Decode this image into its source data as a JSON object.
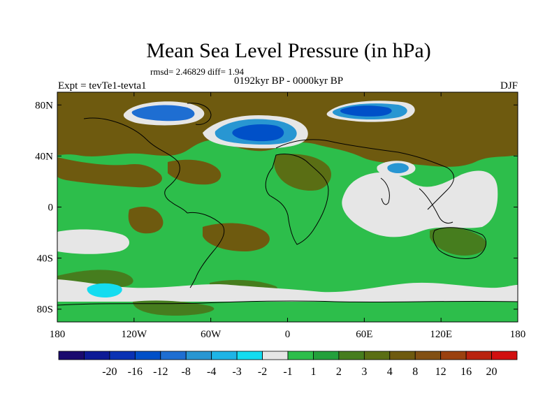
{
  "chart_data": {
    "type": "heatmap",
    "title": "Mean Sea Level Pressure (in hPa)",
    "stats_line": "rmsd= 2.46829 diff= 1.94",
    "subtitle": "0192kyr BP - 0000kyr BP",
    "left_label": "Expt = tevTe1-tevta1",
    "right_label": "DJF",
    "x_axis": {
      "range": [
        -180,
        180
      ],
      "ticks": [
        {
          "value": -180,
          "label": "180"
        },
        {
          "value": -120,
          "label": "120W"
        },
        {
          "value": -60,
          "label": "60W"
        },
        {
          "value": 0,
          "label": "0"
        },
        {
          "value": 60,
          "label": "60E"
        },
        {
          "value": 120,
          "label": "120E"
        },
        {
          "value": 180,
          "label": "180"
        }
      ]
    },
    "y_axis": {
      "range": [
        -90,
        90
      ],
      "ticks": [
        {
          "value": 80,
          "label": "80N"
        },
        {
          "value": 40,
          "label": "40N"
        },
        {
          "value": 0,
          "label": "0"
        },
        {
          "value": -40,
          "label": "40S"
        },
        {
          "value": -80,
          "label": "80S"
        }
      ]
    },
    "colorbar": {
      "colors": [
        "#1a0a6e",
        "#0d1a96",
        "#0a32b4",
        "#0050c8",
        "#1e6ed2",
        "#2896d2",
        "#1eb4e6",
        "#14dcf0",
        "#e6e6e6",
        "#2dbe4b",
        "#23a03c",
        "#467d1e",
        "#5a6e14",
        "#6e5a0f",
        "#825014",
        "#9b410f",
        "#b9230f",
        "#d20f0f"
      ],
      "labels": [
        "-20",
        "-16",
        "-12",
        "-8",
        "-4",
        "-3",
        "-2",
        "-1",
        "1",
        "2",
        "3",
        "4",
        "8",
        "12",
        "16",
        "20"
      ]
    },
    "regions": [
      {
        "name": "background",
        "value": 2,
        "color": "#2dbe4b"
      },
      {
        "name": "north-eurasia",
        "value": 4,
        "color": "#5a6e14"
      },
      {
        "name": "north-america",
        "value": 4,
        "color": "#5a6e14"
      },
      {
        "name": "north-atlantic-low",
        "value": -8,
        "color": "#0050c8"
      },
      {
        "name": "barents-kara-low",
        "value": -4,
        "color": "#1e6ed2"
      },
      {
        "name": "tibet-low",
        "value": -3,
        "color": "#2896d2"
      },
      {
        "name": "indian-ocean",
        "value": 1,
        "color": "#e6e6e6"
      },
      {
        "name": "south-pacific",
        "value": 1,
        "color": "#e6e6e6"
      },
      {
        "name": "southern-ocean",
        "value": 1,
        "color": "#e6e6e6"
      },
      {
        "name": "ross-sea",
        "value": -1,
        "color": "#14dcf0"
      },
      {
        "name": "australia-sea",
        "value": 3,
        "color": "#467d1e"
      }
    ]
  }
}
